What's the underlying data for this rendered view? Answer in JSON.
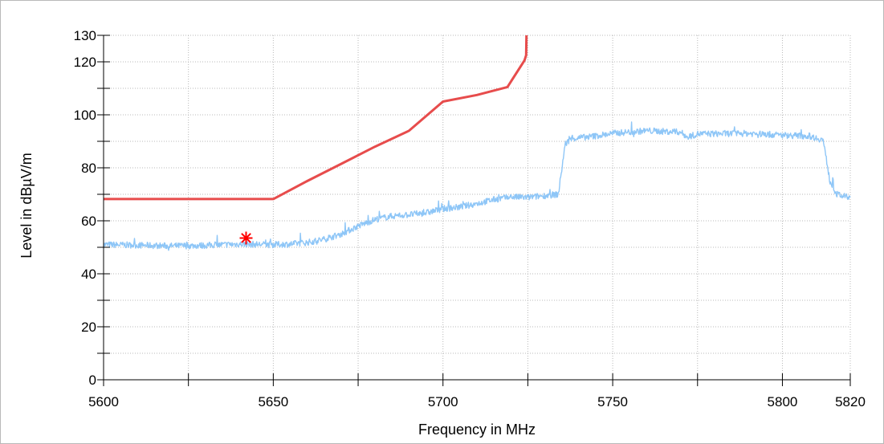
{
  "chart_data": {
    "type": "line",
    "xlabel": "Frequency in MHz",
    "ylabel": "Level in dBµV/m",
    "xlim": [
      5600,
      5820
    ],
    "ylim": [
      0,
      130
    ],
    "x_ticks": [
      {
        "v": 5600,
        "label": "5600"
      },
      {
        "v": 5650,
        "label": "5650"
      },
      {
        "v": 5700,
        "label": "5700"
      },
      {
        "v": 5750,
        "label": "5750"
      },
      {
        "v": 5800,
        "label": "5800"
      },
      {
        "v": 5820,
        "label": "5820"
      }
    ],
    "x_minor_ticks": [
      5625,
      5675,
      5725,
      5775
    ],
    "y_ticks": [
      {
        "v": 0,
        "label": "0"
      },
      {
        "v": 20,
        "label": "20"
      },
      {
        "v": 40,
        "label": "40"
      },
      {
        "v": 60,
        "label": "60"
      },
      {
        "v": 80,
        "label": "80"
      },
      {
        "v": 100,
        "label": "100"
      },
      {
        "v": 120,
        "label": "120"
      },
      {
        "v": 130,
        "label": "130"
      }
    ],
    "y_minor_ticks": [
      10,
      30,
      50,
      70,
      90,
      110
    ],
    "grid": true,
    "series": [
      {
        "name": "",
        "color": "#8ec6f7",
        "noise": 1.2,
        "points": [
          [
            5600,
            51.0
          ],
          [
            5610,
            50.8
          ],
          [
            5620,
            50.5
          ],
          [
            5630,
            50.7
          ],
          [
            5640,
            51.2
          ],
          [
            5650,
            51.0
          ],
          [
            5655,
            51.2
          ],
          [
            5660,
            51.8
          ],
          [
            5665,
            53.0
          ],
          [
            5670,
            55.0
          ],
          [
            5675,
            58.0
          ],
          [
            5680,
            60.5
          ],
          [
            5685,
            61.8
          ],
          [
            5690,
            62.3
          ],
          [
            5695,
            63.0
          ],
          [
            5700,
            64.5
          ],
          [
            5705,
            65.2
          ],
          [
            5710,
            66.5
          ],
          [
            5715,
            68.0
          ],
          [
            5720,
            69.0
          ],
          [
            5725,
            68.8
          ],
          [
            5730,
            69.5
          ],
          [
            5734,
            70.0
          ],
          [
            5736,
            89.0
          ],
          [
            5738,
            91.0
          ],
          [
            5745,
            92.0
          ],
          [
            5750,
            93.0
          ],
          [
            5760,
            94.0
          ],
          [
            5770,
            93.5
          ],
          [
            5772,
            91.5
          ],
          [
            5775,
            92.8
          ],
          [
            5790,
            93.0
          ],
          [
            5800,
            92.3
          ],
          [
            5808,
            92.0
          ],
          [
            5812,
            90.5
          ],
          [
            5814,
            75.0
          ],
          [
            5816,
            70.0
          ],
          [
            5820,
            68.5
          ]
        ]
      },
      {
        "name": "",
        "color": "#e74c4c",
        "noise": 0,
        "points": [
          [
            5600,
            68.2
          ],
          [
            5650,
            68.2
          ],
          [
            5660,
            75.0
          ],
          [
            5670,
            81.5
          ],
          [
            5680,
            88.0
          ],
          [
            5690,
            94.0
          ],
          [
            5700,
            105.0
          ],
          [
            5710,
            107.5
          ],
          [
            5719,
            110.5
          ],
          [
            5724,
            120.5
          ],
          [
            5724.5,
            122.5
          ],
          [
            5724.6,
            130
          ]
        ]
      }
    ],
    "markers": [
      {
        "x": 5642,
        "y": 53.5,
        "color": "#ff0000",
        "symbol": "asterisk"
      }
    ]
  }
}
